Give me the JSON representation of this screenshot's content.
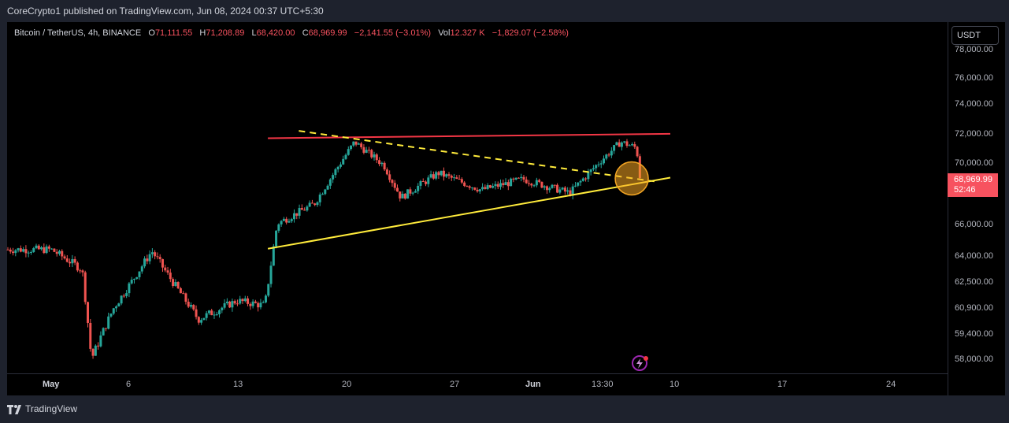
{
  "header": {
    "publish_line": "CoreCrypto1 published on TradingView.com, Jun 08, 2024 00:37 UTC+5:30"
  },
  "legend": {
    "symbol": "Bitcoin / TetherUS, 4h, BINANCE",
    "o_label": "O",
    "o_value": "71,111.55",
    "h_label": "H",
    "h_value": "71,208.89",
    "l_label": "L",
    "l_value": "68,420.00",
    "c_label": "C",
    "c_value": "68,969.99",
    "change": "−2,141.55 (−3.01%)",
    "vol_label": "Vol",
    "vol_value": "12.327 K",
    "vol_change": "−1,829.07 (−2.58%)"
  },
  "price_scale": {
    "currency": "USDT",
    "ticks": [
      "78,000.00",
      "76,000.00",
      "74,000.00",
      "72,000.00",
      "70,000.00",
      "66,000.00",
      "64,000.00",
      "62,500.00",
      "60,900.00",
      "59,400.00",
      "58,000.00"
    ],
    "last_price": "68,969.99",
    "countdown": "52:46"
  },
  "time_axis": {
    "labels": [
      "May",
      "6",
      "13",
      "20",
      "27",
      "Jun",
      "13:30",
      "10",
      "17",
      "24"
    ]
  },
  "footer": {
    "brand": "TradingView"
  },
  "chart_data": {
    "type": "candlestick",
    "symbol": "BTCUSDT",
    "interval": "4h",
    "ylim": [
      57500,
      78500
    ],
    "x_range": [
      "2024-05-01",
      "2024-06-27"
    ],
    "colors": {
      "up": "#26a69a",
      "down": "#ef5350",
      "resistance": "#f23645",
      "support": "#ffeb3b",
      "highlight": "#f5a623"
    },
    "trendlines": [
      {
        "name": "",
        "style": "solid",
        "color": "#f23645",
        "start": [
          "2024-05-15",
          71650
        ],
        "end": [
          "2024-06-10",
          71950
        ]
      },
      {
        "name": "",
        "style": "dashed",
        "color": "#ffeb3b",
        "start": [
          "2024-05-17",
          72150
        ],
        "end": [
          "2024-06-09",
          68750
        ]
      },
      {
        "name": "",
        "style": "solid",
        "color": "#ffeb3b",
        "start": [
          "2024-05-15",
          64450
        ],
        "end": [
          "2024-06-10",
          69000
        ]
      }
    ],
    "highlight": {
      "center": [
        "2024-06-07",
        68950
      ]
    },
    "anchors": [
      {
        "t": 0.0,
        "p": 64400
      },
      {
        "t": 2.0,
        "p": 63200
      },
      {
        "t": 2.6,
        "p": 58000
      },
      {
        "t": 4.0,
        "p": 60800
      },
      {
        "t": 6.5,
        "p": 64300
      },
      {
        "t": 9.5,
        "p": 60200
      },
      {
        "t": 12.0,
        "p": 61300
      },
      {
        "t": 13.8,
        "p": 61000
      },
      {
        "t": 14.6,
        "p": 66000
      },
      {
        "t": 17.0,
        "p": 67300
      },
      {
        "t": 19.6,
        "p": 71400
      },
      {
        "t": 21.5,
        "p": 69800
      },
      {
        "t": 22.6,
        "p": 67700
      },
      {
        "t": 25.0,
        "p": 69300
      },
      {
        "t": 27.8,
        "p": 68200
      },
      {
        "t": 30.5,
        "p": 68900
      },
      {
        "t": 33.5,
        "p": 68000
      },
      {
        "t": 35.4,
        "p": 70000
      },
      {
        "t": 36.8,
        "p": 71400
      },
      {
        "t": 37.8,
        "p": 71000
      },
      {
        "t": 38.1,
        "p": 68969.99
      }
    ]
  }
}
